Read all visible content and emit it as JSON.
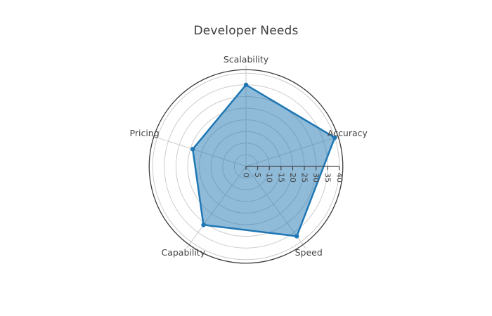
{
  "page": {
    "background": "#ffffff"
  },
  "chart_data": {
    "type": "radar",
    "title": "Developer Needs",
    "categories": [
      "Scalability",
      "Accuracy",
      "Speed",
      "Capability",
      "Pricing"
    ],
    "values": [
      35,
      40,
      37,
      31,
      24
    ],
    "series": [
      {
        "name": "Developer Needs",
        "values": [
          35,
          40,
          37,
          31,
          24
        ]
      }
    ],
    "radial_axis": {
      "range": [
        0,
        41.5
      ],
      "ticks": [
        0,
        5,
        10,
        15,
        20,
        25,
        30,
        35,
        40
      ],
      "tick_label_rotation": 90,
      "grid": true
    },
    "angular_axis": {
      "start_angle_deg": 90,
      "direction": "clockwise",
      "axis_count": 5
    },
    "legend": {
      "visible": false
    },
    "colors": {
      "series_line": "#1f77b4",
      "series_fill": "rgba(31,119,180,0.5)",
      "grid_line": "#cccccc",
      "axis_boundary": "#3a3a3a",
      "radial_axis_line": "#444444",
      "tick_label": "#444444",
      "category_label": "#444444",
      "title": "#3d3d3d"
    }
  }
}
